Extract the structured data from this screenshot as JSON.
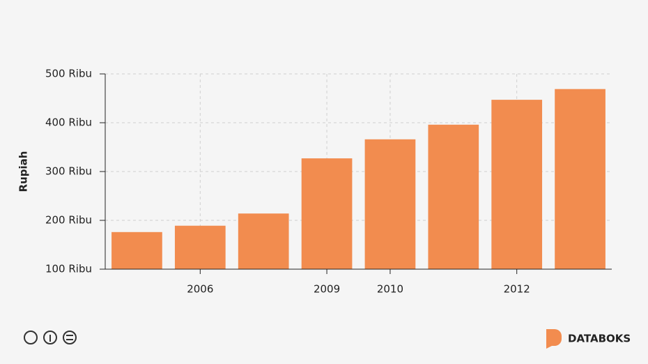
{
  "chart_data": {
    "type": "bar",
    "y_label": "Rupiah",
    "categories": [
      null,
      "2006",
      null,
      "2009",
      "2010",
      null,
      "2012",
      null
    ],
    "values": [
      176,
      189,
      214,
      327,
      366,
      396,
      447,
      469
    ],
    "color": "#f28c4f",
    "ylim": [
      100,
      500
    ],
    "yticks": [
      {
        "value": 100,
        "label": "100 Ribu"
      },
      {
        "value": 200,
        "label": "200 Ribu"
      },
      {
        "value": 300,
        "label": "300 Ribu"
      },
      {
        "value": 400,
        "label": "400 Ribu"
      },
      {
        "value": 500,
        "label": "500 Ribu"
      }
    ],
    "grid": true
  },
  "footer": {
    "brand": "DATABOKS"
  }
}
